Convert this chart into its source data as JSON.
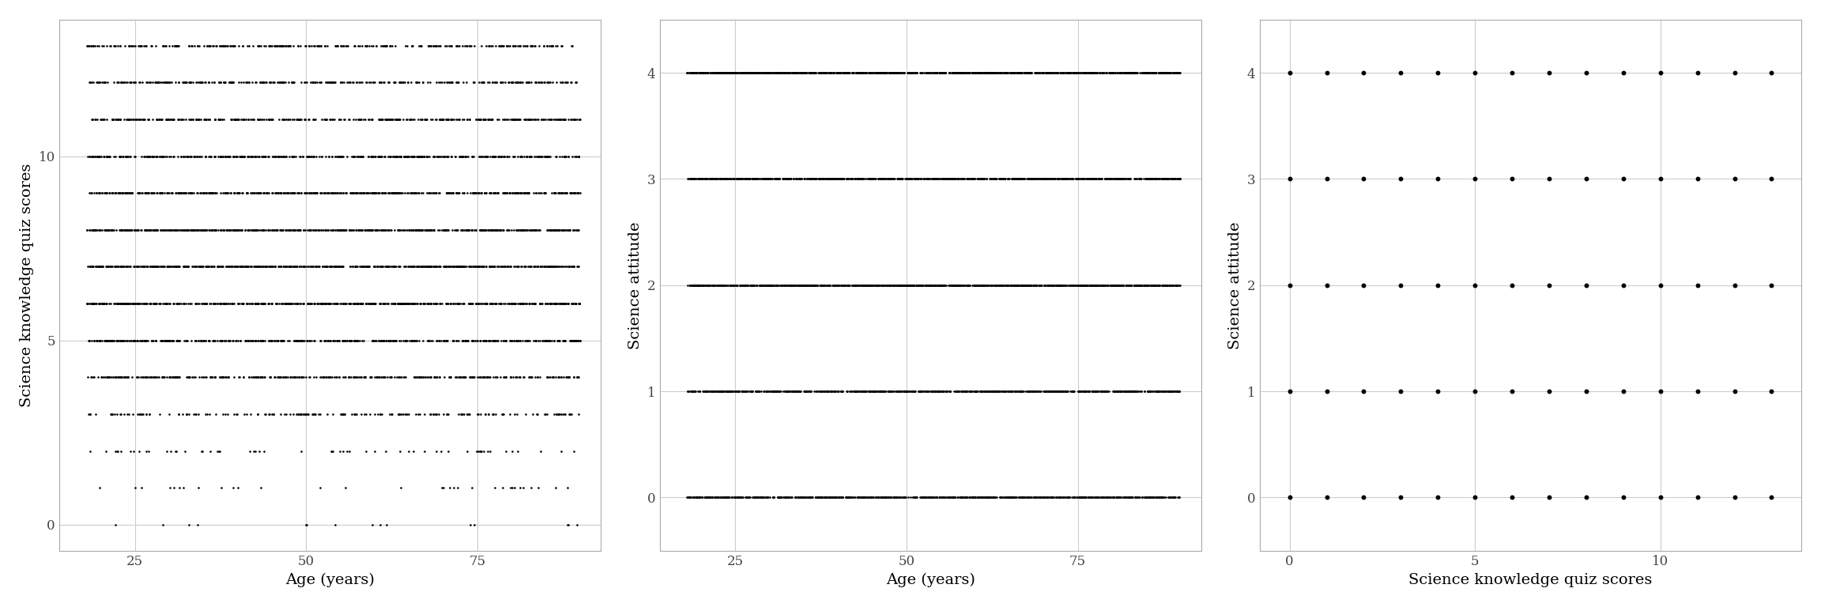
{
  "plot1": {
    "xlabel": "Age (years)",
    "ylabel": "Science knowledge quiz scores",
    "xlim": [
      14,
      93
    ],
    "ylim": [
      -0.7,
      13.7
    ],
    "yticks": [
      0,
      5,
      10
    ],
    "xticks": [
      25,
      50,
      75
    ],
    "dot_size": 3.5
  },
  "plot2": {
    "xlabel": "Age (years)",
    "ylabel": "Science attitude",
    "xlim": [
      14,
      93
    ],
    "ylim": [
      -0.5,
      4.5
    ],
    "yticks": [
      0,
      1,
      2,
      3,
      4
    ],
    "xticks": [
      25,
      50,
      75
    ],
    "dot_size": 3.5
  },
  "plot3": {
    "xlabel": "Science knowledge quiz scores",
    "ylabel": "Science attitude",
    "xlim": [
      -0.8,
      13.8
    ],
    "ylim": [
      -0.5,
      4.5
    ],
    "yticks": [
      0,
      1,
      2,
      3,
      4
    ],
    "xticks": [
      0,
      5,
      10
    ],
    "dot_size": 18.0
  },
  "background_color": "#ffffff",
  "grid_color": "#cccccc",
  "dot_color": "#000000",
  "font_family": "DejaVu Serif",
  "label_fontsize": 14,
  "tick_fontsize": 12,
  "n_samples": 5000,
  "age_min": 18,
  "age_max": 90,
  "score_min": 0,
  "score_max": 13,
  "attitude_min": 0,
  "attitude_max": 4
}
